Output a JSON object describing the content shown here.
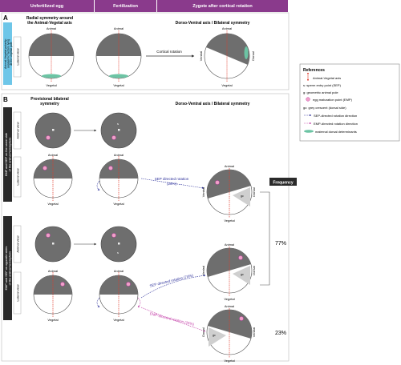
{
  "header": {
    "col1": "Unfertilized egg",
    "col2": "Fertilization",
    "col3": "Zygote after cortical rotation"
  },
  "panel_a": {
    "letter": "A",
    "title_left_1": "Radial symmetry around",
    "title_left_2": "the Animal-Vegetal axis",
    "title_right": "Dorso-Ventral axis / Bilateral symmetry",
    "side_label_1": "Animal-Vegetal polarity:",
    "side_label_2": "ooplasmic factors lying",
    "side_label_3": "at the vegetal pole",
    "view_label": "Lateral view",
    "animal": "Animal",
    "vegetal": "Vegetal",
    "arrow_label": "Cortical rotation",
    "ventral": "Ventral",
    "dorsal": "Dorsal"
  },
  "panel_b": {
    "letter": "B",
    "title_left_1": "Provisional bilateral",
    "title_left_2": "symmetry",
    "title_right": "Dorso-Ventral axis / Bilateral symmetry",
    "group1_label_1": "EMP and SEP on the same side",
    "group1_label_2": "of the animal hemisphere",
    "group2_label_1": "EMP and SEP on opposite sides",
    "group2_label_2": "of the animal hemisphere",
    "animal_view": "Animal view",
    "lateral_view": "Lateral view",
    "animal": "Animal",
    "vegetal": "Vegetal",
    "ventral": "Ventral",
    "dorsal": "Dorsal",
    "sep_rotation_1": "SEP directed rotation",
    "sep_rotation_1_pct": "(26%)",
    "sep_rotation_2": "SEP directed rotation (74%)",
    "emp_rotation": "EMP-directed rotation (26%)",
    "frequency": "Frequency",
    "pct_77": "77%",
    "pct_23": "23%",
    "gc": "gc"
  },
  "references": {
    "title": "References",
    "items": [
      "Animal-Vegetal axis",
      "s: sperm entry point (SEP)",
      "g: geometric animal pole",
      "egg maturation point (EMP)",
      "gc: grey crescent (dorsal side)",
      "SEP-directed rotation direction",
      "EMP-directed rotation direction",
      "maternal dorsal determinants"
    ]
  },
  "colors": {
    "header": "#8a3a8c",
    "hemisphere": "#6e6e6e",
    "axis": "#e03a2a",
    "sep_arrow": "#2b2f9a",
    "emp_arrow": "#c23aa6",
    "determinants": "#6cc4a4",
    "side_tab_a": "#6ec6e8",
    "side_tab_b": "#2a2a2a"
  }
}
